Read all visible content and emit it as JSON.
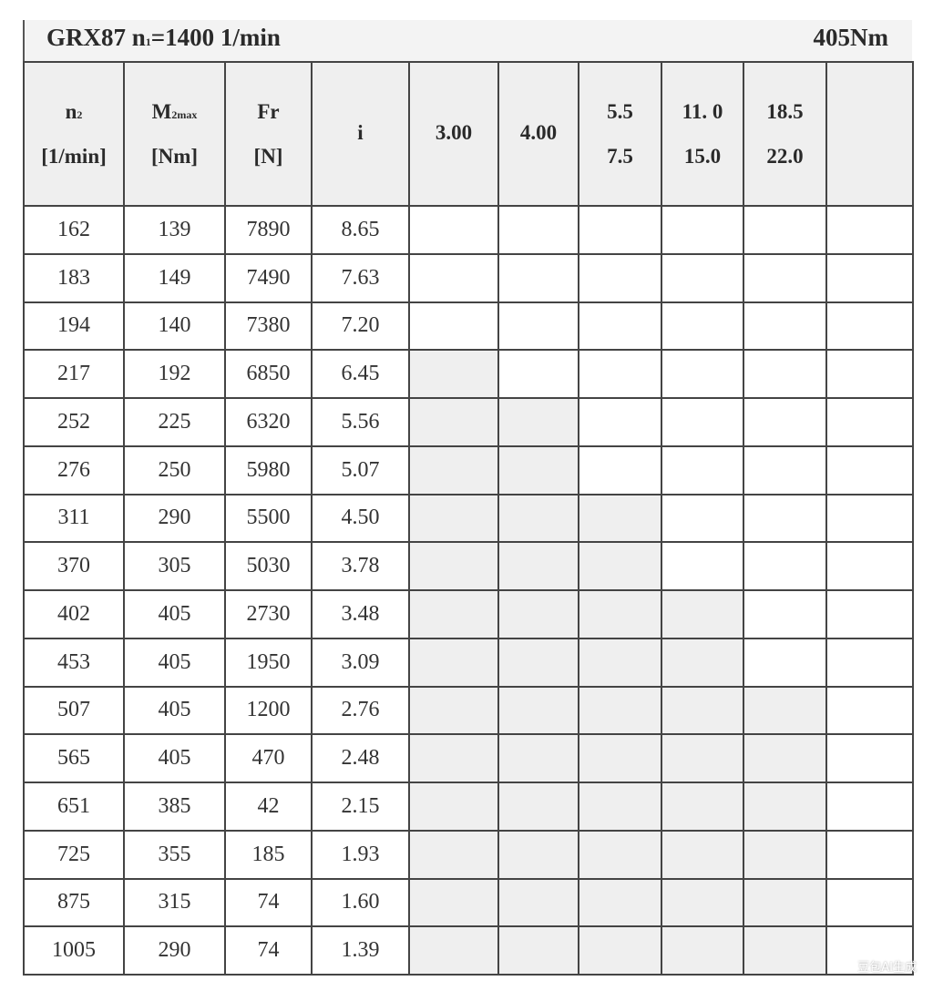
{
  "title": {
    "left_main": "GRX87 n",
    "left_sub": "1",
    "left_rest": "=1400 1/min",
    "right": "405Nm"
  },
  "headers": [
    {
      "main": "n",
      "sub": "2",
      "unit": "[1/min]"
    },
    {
      "main": "M",
      "sub": "2max",
      "unit": "[Nm]"
    },
    {
      "main": "Fr",
      "sub": "",
      "unit": "[N]"
    },
    {
      "main": "i",
      "sub": "",
      "unit": ""
    },
    {
      "main": "3.00",
      "sub": "",
      "unit": ""
    },
    {
      "main": "4.00",
      "sub": "",
      "unit": ""
    },
    {
      "main": "5.5",
      "sub": "",
      "unit": "7.5"
    },
    {
      "main": "11. 0",
      "sub": "",
      "unit": "15.0"
    },
    {
      "main": "18.5",
      "sub": "",
      "unit": "22.0"
    },
    {
      "main": "",
      "sub": "",
      "unit": ""
    }
  ],
  "power_columns_shaded_from_n2": [
    217,
    252,
    311,
    402,
    507,
    null
  ],
  "shade_color": "#efefef",
  "rows": [
    [
      "162",
      "139",
      "7890",
      "8.65"
    ],
    [
      "183",
      "149",
      "7490",
      "7.63"
    ],
    [
      "194",
      "140",
      "7380",
      "7.20"
    ],
    [
      "217",
      "192",
      "6850",
      "6.45"
    ],
    [
      "252",
      "225",
      "6320",
      "5.56"
    ],
    [
      "276",
      "250",
      "5980",
      "5.07"
    ],
    [
      "311",
      "290",
      "5500",
      "4.50"
    ],
    [
      "370",
      "305",
      "5030",
      "3.78"
    ],
    [
      "402",
      "405",
      "2730",
      "3.48"
    ],
    [
      "453",
      "405",
      "1950",
      "3.09"
    ],
    [
      "507",
      "405",
      "1200",
      "2.76"
    ],
    [
      "565",
      "405",
      "470",
      "2.48"
    ],
    [
      "651",
      "385",
      "42",
      "2.15"
    ],
    [
      "725",
      "355",
      "185",
      "1.93"
    ],
    [
      "875",
      "315",
      "74",
      "1.60"
    ],
    [
      "1005",
      "290",
      "74",
      "1.39"
    ]
  ],
  "watermark": "豆包AI生成"
}
